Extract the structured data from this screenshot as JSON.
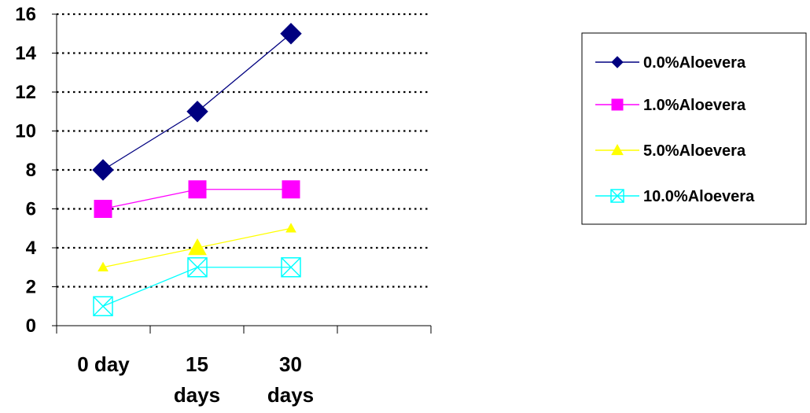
{
  "chart_data": {
    "type": "line",
    "title": "",
    "xlabel": "",
    "ylabel": "",
    "categories": [
      {
        "lines": [
          "0 day"
        ]
      },
      {
        "lines": [
          "15",
          "days"
        ]
      },
      {
        "lines": [
          "30",
          "days"
        ]
      }
    ],
    "ylim": [
      0,
      16
    ],
    "yticks": [
      "0",
      "2",
      "4",
      "6",
      "8",
      "10",
      "12",
      "14",
      "16"
    ],
    "grid": "horizontal dotted",
    "legend_position": "right",
    "series": [
      {
        "name": "0.0%Aloevera",
        "values": [
          8,
          11,
          15
        ],
        "color": "#000080",
        "marker": "diamond"
      },
      {
        "name": "1.0%Aloevera",
        "values": [
          6,
          7,
          7
        ],
        "color": "#FF00FF",
        "marker": "square"
      },
      {
        "name": "5.0%Aloevera",
        "values": [
          3,
          4,
          5
        ],
        "color": "#FFFF00",
        "marker": "triangle"
      },
      {
        "name": "10.0%Aloevera",
        "values": [
          1,
          3,
          3
        ],
        "color": "#00FFFF",
        "marker": "boxed-x"
      }
    ]
  }
}
